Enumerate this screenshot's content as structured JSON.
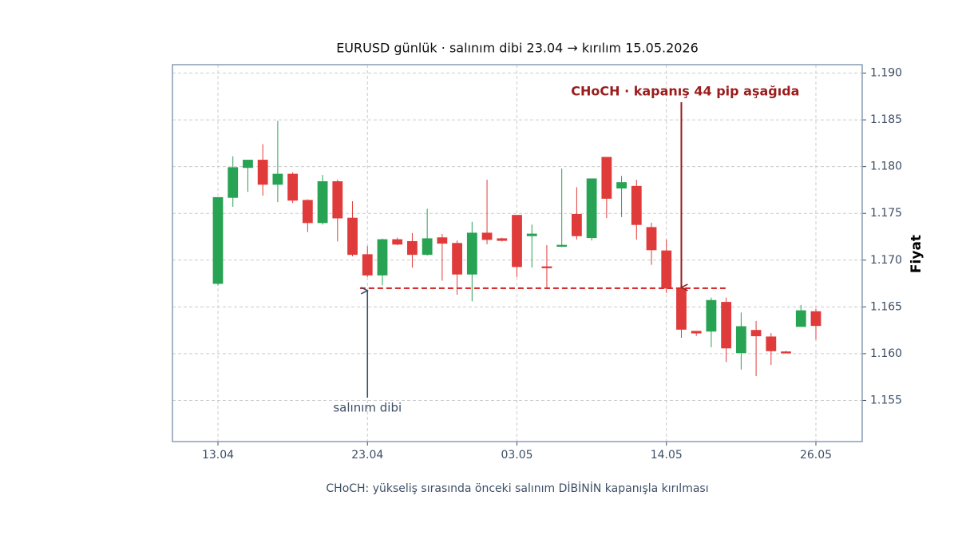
{
  "chart_data": {
    "type": "candlestick",
    "title": "EURUSD günlük · salınım dibi 23.04 → kırılım 15.05.2026",
    "y_label": "Fiyat",
    "footnote": "CHoCH: yükseliş sırasında önceki salınım DİBİNİN kapanışla kırılması",
    "categories": [
      "13.04",
      null,
      null,
      null,
      null,
      null,
      null,
      null,
      null,
      null,
      "23.04",
      null,
      null,
      null,
      null,
      null,
      null,
      null,
      null,
      null,
      "03.05",
      null,
      null,
      null,
      null,
      null,
      null,
      null,
      null,
      null,
      "14.05",
      null,
      null,
      null,
      null,
      null,
      null,
      null,
      null,
      null,
      "26.05"
    ],
    "open": [
      1.1675,
      1.1767,
      1.1799,
      1.1807,
      1.1781,
      1.1792,
      1.1764,
      1.174,
      1.1784,
      1.1745,
      1.1706,
      1.1684,
      1.1722,
      1.172,
      1.1706,
      1.1724,
      1.1718,
      1.1685,
      1.1729,
      1.1723,
      1.1748,
      1.1726,
      1.1693,
      1.1715,
      1.1749,
      1.1724,
      1.181,
      1.1777,
      1.1779,
      1.1735,
      1.171,
      1.167,
      1.1624,
      1.1624,
      1.1655,
      1.1601,
      1.1625,
      1.1618,
      1.1602,
      1.1629,
      1.1645
    ],
    "high": [
      1.1767,
      1.1811,
      1.1807,
      1.1824,
      1.1849,
      1.1794,
      1.1765,
      1.1791,
      1.1786,
      1.1763,
      1.1715,
      1.1723,
      1.1724,
      1.1729,
      1.1755,
      1.1728,
      1.1721,
      1.1741,
      1.1786,
      1.1724,
      1.1748,
      1.1738,
      1.1716,
      1.1798,
      1.1778,
      1.1787,
      1.181,
      1.179,
      1.1786,
      1.174,
      1.1722,
      1.167,
      1.1624,
      1.166,
      1.166,
      1.1644,
      1.1635,
      1.1622,
      1.1603,
      1.1652,
      1.1648
    ],
    "low": [
      1.1673,
      1.1757,
      1.1773,
      1.1769,
      1.1762,
      1.1761,
      1.173,
      1.1738,
      1.172,
      1.1704,
      1.1682,
      1.1673,
      1.1716,
      1.1692,
      1.1705,
      1.1678,
      1.1663,
      1.1656,
      1.1717,
      1.172,
      1.1682,
      1.1692,
      1.167,
      1.1714,
      1.1722,
      1.1721,
      1.1745,
      1.1746,
      1.1722,
      1.1695,
      1.1665,
      1.1617,
      1.1619,
      1.1607,
      1.1591,
      1.1583,
      1.1576,
      1.1588,
      1.16,
      1.1629,
      1.1615
    ],
    "close": [
      1.1767,
      1.1799,
      1.1807,
      1.1781,
      1.1792,
      1.1764,
      1.174,
      1.1784,
      1.1745,
      1.1706,
      1.1684,
      1.1722,
      1.1717,
      1.1706,
      1.1723,
      1.1718,
      1.1685,
      1.1729,
      1.1722,
      1.1721,
      1.1693,
      1.1728,
      1.1692,
      1.1716,
      1.1726,
      1.1787,
      1.1766,
      1.1783,
      1.1738,
      1.1711,
      1.167,
      1.1626,
      1.1622,
      1.1657,
      1.1606,
      1.1629,
      1.1619,
      1.1603,
      1.1601,
      1.1646,
      1.163
    ],
    "up_color": "#27a353",
    "down_color": "#e03b3b",
    "level": 1.167,
    "level_color": "#d62f2f",
    "annotations": [
      {
        "text": "CHoCH · kapanış 44 pip aşağıda",
        "color": "#9b1c1c"
      },
      {
        "text": "salınım dibi",
        "color": "#3d4f66"
      }
    ],
    "ylim": [
      1.1506,
      1.1909
    ],
    "yticks": [
      1.155,
      {
        "value": 1.16,
        "label": "1.160"
      },
      1.165,
      {
        "value": 1.17,
        "label": "1.170"
      },
      1.175,
      {
        "value": 1.18,
        "label": "1.180"
      },
      1.185,
      {
        "value": 1.19,
        "label": "1.190"
      }
    ],
    "grid": true
  }
}
